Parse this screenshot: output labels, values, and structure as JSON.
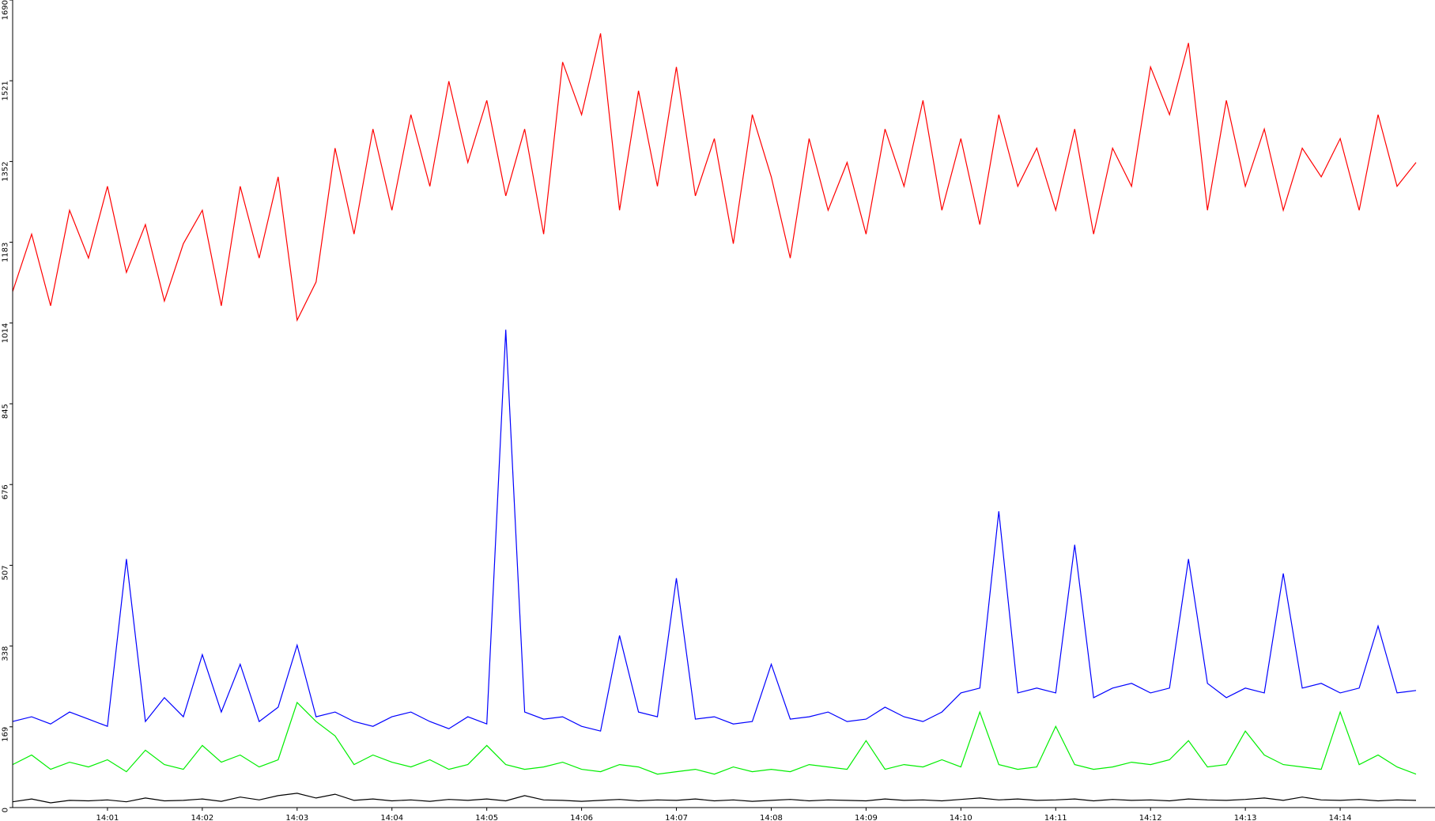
{
  "chart_data": {
    "type": "line",
    "categories": [
      null,
      null,
      null,
      null,
      null,
      "14:01",
      null,
      null,
      null,
      null,
      "14:02",
      null,
      null,
      null,
      null,
      "14:03",
      null,
      null,
      null,
      null,
      "14:04",
      null,
      null,
      null,
      null,
      "14:05",
      null,
      null,
      null,
      null,
      "14:06",
      null,
      null,
      null,
      null,
      "14:07",
      null,
      null,
      null,
      null,
      "14:08",
      null,
      null,
      null,
      null,
      "14:09",
      null,
      null,
      null,
      null,
      "14:10",
      null,
      null,
      null,
      null,
      "14:11",
      null,
      null,
      null,
      null,
      "14:12",
      null,
      null,
      null,
      null,
      "14:13",
      null,
      null,
      null,
      null,
      "14:14",
      null,
      null,
      null,
      null
    ],
    "series": [
      {
        "color": "#ff0000",
        "values": [
          1080,
          1200,
          1050,
          1250,
          1150,
          1300,
          1120,
          1220,
          1060,
          1180,
          1250,
          1050,
          1300,
          1150,
          1320,
          1020,
          1100,
          1380,
          1200,
          1420,
          1250,
          1450,
          1300,
          1520,
          1350,
          1480,
          1280,
          1420,
          1200,
          1560,
          1450,
          1620,
          1250,
          1500,
          1300,
          1550,
          1280,
          1400,
          1180,
          1450,
          1320,
          1150,
          1400,
          1250,
          1350,
          1200,
          1420,
          1300,
          1480,
          1250,
          1400,
          1220,
          1450,
          1300,
          1380,
          1250,
          1420,
          1200,
          1380,
          1300,
          1550,
          1450,
          1600,
          1250,
          1480,
          1300,
          1420,
          1250,
          1380,
          1320,
          1400,
          1250,
          1450,
          1300,
          1350
        ]
      },
      {
        "color": "#0000ff",
        "values": [
          180,
          190,
          175,
          200,
          185,
          170,
          520,
          180,
          230,
          190,
          320,
          200,
          300,
          180,
          210,
          340,
          190,
          200,
          180,
          170,
          190,
          200,
          180,
          165,
          190,
          175,
          1000,
          200,
          185,
          190,
          170,
          160,
          360,
          200,
          190,
          480,
          185,
          190,
          175,
          180,
          300,
          185,
          190,
          200,
          180,
          185,
          210,
          190,
          180,
          200,
          240,
          250,
          620,
          240,
          250,
          240,
          550,
          230,
          250,
          260,
          240,
          250,
          520,
          260,
          230,
          250,
          240,
          490,
          250,
          260,
          240,
          250,
          380,
          240,
          245
        ]
      },
      {
        "color": "#00ee00",
        "values": [
          90,
          110,
          80,
          95,
          85,
          100,
          75,
          120,
          90,
          80,
          130,
          95,
          110,
          85,
          100,
          220,
          180,
          150,
          90,
          110,
          95,
          85,
          100,
          80,
          90,
          130,
          90,
          80,
          85,
          95,
          80,
          75,
          90,
          85,
          70,
          75,
          80,
          70,
          85,
          75,
          80,
          75,
          90,
          85,
          80,
          140,
          80,
          90,
          85,
          100,
          85,
          200,
          90,
          80,
          85,
          170,
          90,
          80,
          85,
          95,
          90,
          100,
          140,
          85,
          90,
          160,
          110,
          90,
          85,
          80,
          200,
          90,
          110,
          85,
          70
        ]
      },
      {
        "color": "#000000",
        "values": [
          12,
          18,
          10,
          15,
          14,
          16,
          12,
          20,
          14,
          15,
          18,
          13,
          22,
          16,
          25,
          30,
          20,
          28,
          15,
          18,
          14,
          16,
          13,
          17,
          15,
          18,
          14,
          25,
          16,
          15,
          13,
          15,
          17,
          14,
          16,
          15,
          18,
          14,
          16,
          13,
          15,
          17,
          14,
          16,
          15,
          14,
          18,
          15,
          16,
          14,
          17,
          20,
          16,
          18,
          15,
          16,
          18,
          14,
          17,
          15,
          16,
          14,
          18,
          16,
          15,
          17,
          20,
          15,
          22,
          16,
          15,
          17,
          14,
          16,
          15
        ]
      }
    ],
    "ylim": [
      0,
      1690
    ],
    "yticks": [
      0,
      169,
      338,
      507,
      676,
      845,
      1014,
      1183,
      1352,
      1521,
      1690
    ]
  }
}
